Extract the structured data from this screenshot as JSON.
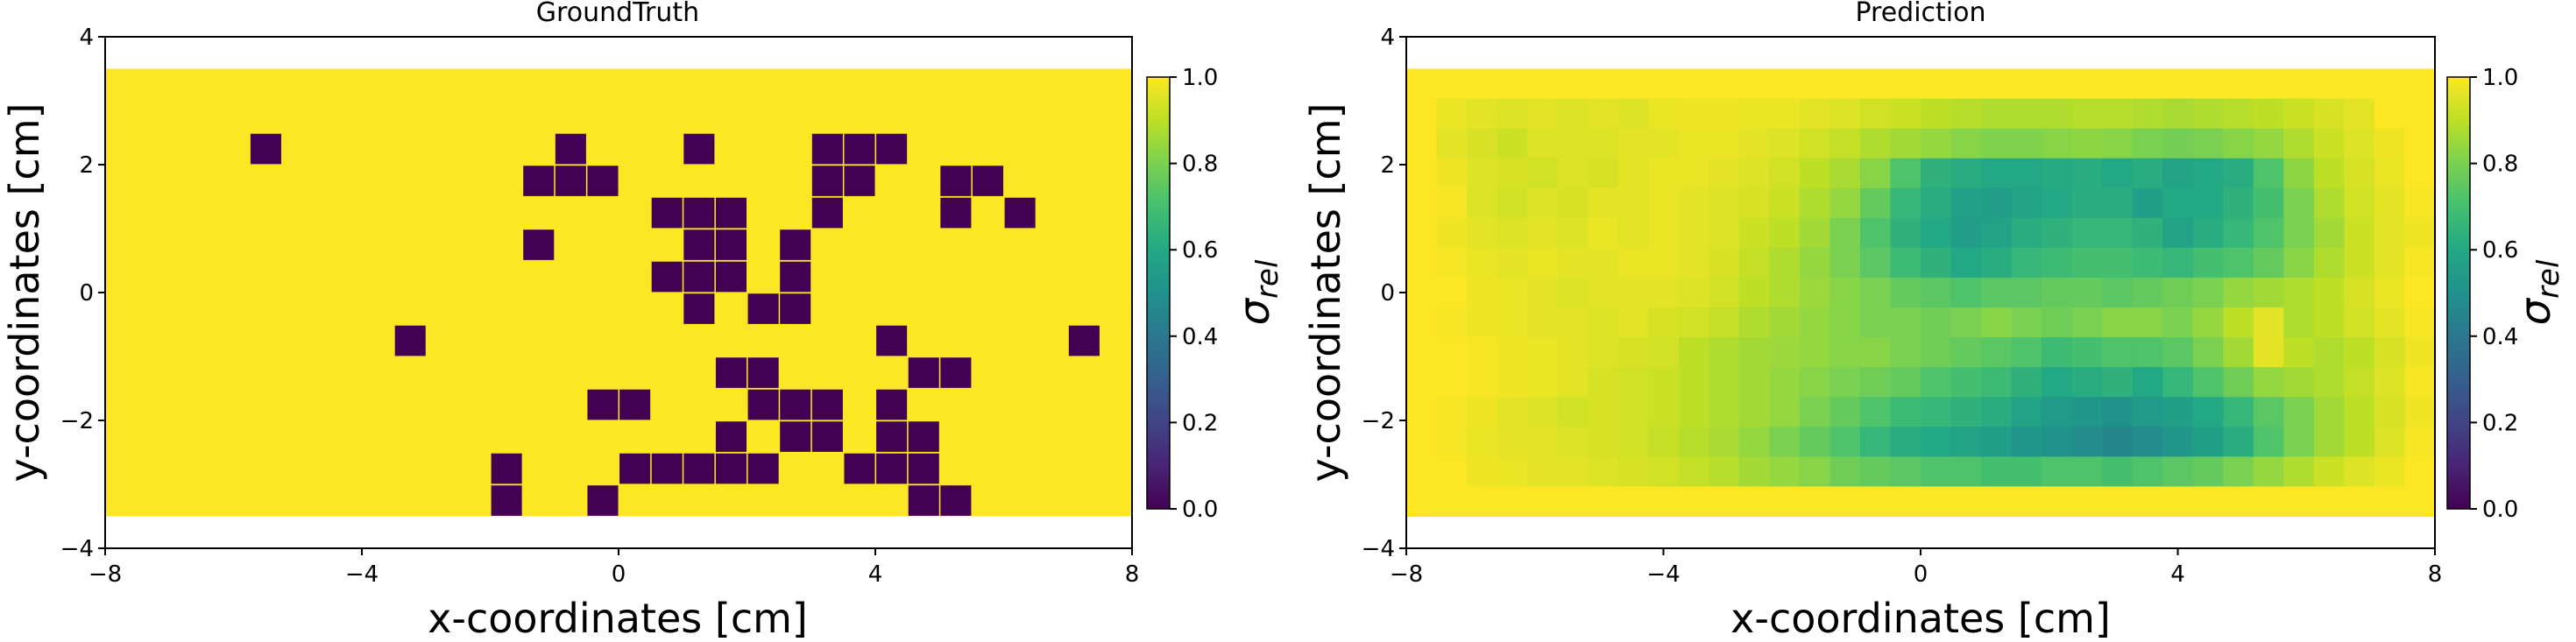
{
  "chart_data": [
    {
      "type": "heatmap",
      "title": "GroundTruth",
      "xlabel": "x-coordinates [cm]",
      "ylabel": "y-coordinates [cm]",
      "xlim": [
        -8,
        8
      ],
      "ylim": [
        -4,
        4
      ],
      "xticks": [
        "−8",
        "−4",
        "0",
        "4",
        "8"
      ],
      "xtick_values": [
        -8,
        -4,
        0,
        4,
        8
      ],
      "yticks": [
        "−4",
        "−2",
        "0",
        "2",
        "4"
      ],
      "ytick_values": [
        -4,
        -2,
        0,
        2,
        4
      ],
      "grid": false,
      "colormap": "viridis",
      "colorbar": {
        "label": "σ",
        "label_sub": "rel",
        "min": 0.0,
        "max": 1.0,
        "ticks": [
          "0.0",
          "0.2",
          "0.4",
          "0.6",
          "0.8",
          "1.0"
        ]
      },
      "grid_x": [
        -8,
        8,
        34
      ],
      "grid_y": [
        -3.5,
        3.5,
        15
      ],
      "fill_value": 1.0,
      "zero_cells": [
        [
          -5.5,
          2.25
        ],
        [
          -0.75,
          2.25
        ],
        [
          1.25,
          2.25
        ],
        [
          3.25,
          2.25
        ],
        [
          3.75,
          2.25
        ],
        [
          4.25,
          2.25
        ],
        [
          -1.25,
          1.75
        ],
        [
          -0.75,
          1.75
        ],
        [
          -0.25,
          1.75
        ],
        [
          3.25,
          1.75
        ],
        [
          3.75,
          1.75
        ],
        [
          5.25,
          1.75
        ],
        [
          5.75,
          1.75
        ],
        [
          0.75,
          1.25
        ],
        [
          1.25,
          1.25
        ],
        [
          1.75,
          1.25
        ],
        [
          3.25,
          1.25
        ],
        [
          5.25,
          1.25
        ],
        [
          6.25,
          1.25
        ],
        [
          -1.25,
          0.75
        ],
        [
          1.25,
          0.75
        ],
        [
          1.75,
          0.75
        ],
        [
          2.75,
          0.75
        ],
        [
          0.75,
          0.25
        ],
        [
          1.25,
          0.25
        ],
        [
          1.75,
          0.25
        ],
        [
          2.75,
          0.25
        ],
        [
          1.25,
          -0.25
        ],
        [
          2.25,
          -0.25
        ],
        [
          2.75,
          -0.25
        ],
        [
          -3.25,
          -0.75
        ],
        [
          4.25,
          -0.75
        ],
        [
          7.25,
          -0.75
        ],
        [
          1.75,
          -1.25
        ],
        [
          2.25,
          -1.25
        ],
        [
          4.75,
          -1.25
        ],
        [
          5.25,
          -1.25
        ],
        [
          -0.25,
          -1.75
        ],
        [
          0.25,
          -1.75
        ],
        [
          2.25,
          -1.75
        ],
        [
          2.75,
          -1.75
        ],
        [
          3.25,
          -1.75
        ],
        [
          4.25,
          -1.75
        ],
        [
          1.75,
          -2.25
        ],
        [
          2.75,
          -2.25
        ],
        [
          3.25,
          -2.25
        ],
        [
          4.25,
          -2.25
        ],
        [
          4.75,
          -2.25
        ],
        [
          -1.75,
          -2.75
        ],
        [
          0.25,
          -2.75
        ],
        [
          0.75,
          -2.75
        ],
        [
          1.25,
          -2.75
        ],
        [
          1.75,
          -2.75
        ],
        [
          2.25,
          -2.75
        ],
        [
          3.75,
          -2.75
        ],
        [
          4.25,
          -2.75
        ],
        [
          4.75,
          -2.75
        ],
        [
          -1.75,
          -3.25
        ],
        [
          -0.25,
          -3.25
        ],
        [
          4.75,
          -3.25
        ],
        [
          5.25,
          -3.25
        ]
      ]
    },
    {
      "type": "heatmap",
      "title": "Prediction",
      "xlabel": "x-coordinates [cm]",
      "ylabel": "y-coordinates [cm]",
      "xlim": [
        -8,
        8
      ],
      "ylim": [
        -4,
        4
      ],
      "xticks": [
        "−8",
        "−4",
        "0",
        "4",
        "8"
      ],
      "xtick_values": [
        -8,
        -4,
        0,
        4,
        8
      ],
      "yticks": [
        "−4",
        "−2",
        "0",
        "2",
        "4"
      ],
      "ytick_values": [
        -4,
        -2,
        0,
        2,
        4
      ],
      "grid": false,
      "colormap": "viridis",
      "colorbar": {
        "label": "σ",
        "label_sub": "rel",
        "min": 0.0,
        "max": 1.0,
        "ticks": [
          "0.0",
          "0.2",
          "0.4",
          "0.6",
          "0.8",
          "1.0"
        ]
      },
      "grid_x": [
        -8,
        8,
        34
      ],
      "grid_y": [
        -3.5,
        3.5,
        15
      ],
      "values": [
        [
          1.0,
          1.0,
          1.0,
          1.0,
          1.0,
          1.0,
          1.0,
          1.0,
          1.0,
          1.0,
          1.0,
          1.0,
          1.0,
          1.0,
          1.0,
          1.0,
          1.0,
          1.0,
          1.0,
          1.0,
          1.0,
          1.0,
          1.0,
          1.0,
          1.0,
          1.0,
          1.0,
          1.0,
          1.0,
          1.0,
          1.0,
          1.0,
          1.0,
          1.0
        ],
        [
          1.0,
          0.97,
          0.96,
          0.95,
          0.96,
          0.95,
          0.96,
          0.95,
          0.97,
          0.98,
          0.98,
          0.97,
          0.97,
          0.96,
          0.95,
          0.93,
          0.92,
          0.9,
          0.89,
          0.88,
          0.88,
          0.88,
          0.89,
          0.89,
          0.88,
          0.87,
          0.88,
          0.89,
          0.9,
          0.92,
          0.94,
          0.96,
          1.0,
          1.0
        ],
        [
          1.0,
          0.96,
          0.94,
          0.92,
          0.95,
          0.95,
          0.95,
          0.96,
          0.96,
          0.97,
          0.97,
          0.96,
          0.95,
          0.93,
          0.91,
          0.88,
          0.86,
          0.84,
          0.82,
          0.81,
          0.81,
          0.82,
          0.83,
          0.82,
          0.8,
          0.79,
          0.8,
          0.82,
          0.84,
          0.88,
          0.92,
          0.95,
          0.98,
          1.0
        ],
        [
          1.0,
          0.98,
          0.95,
          0.94,
          0.93,
          0.95,
          0.94,
          0.96,
          0.97,
          0.97,
          0.96,
          0.95,
          0.93,
          0.9,
          0.87,
          0.82,
          0.72,
          0.64,
          0.62,
          0.6,
          0.6,
          0.61,
          0.62,
          0.6,
          0.62,
          0.58,
          0.6,
          0.62,
          0.72,
          0.83,
          0.9,
          0.94,
          0.97,
          1.0
        ],
        [
          1.0,
          0.99,
          0.95,
          0.93,
          0.95,
          0.94,
          0.96,
          0.96,
          0.97,
          0.96,
          0.95,
          0.94,
          0.92,
          0.88,
          0.84,
          0.76,
          0.66,
          0.62,
          0.57,
          0.55,
          0.58,
          0.6,
          0.62,
          0.62,
          0.56,
          0.6,
          0.6,
          0.64,
          0.7,
          0.8,
          0.88,
          0.93,
          0.96,
          0.99
        ],
        [
          1.0,
          0.98,
          0.96,
          0.95,
          0.96,
          0.95,
          0.97,
          0.96,
          0.97,
          0.96,
          0.95,
          0.92,
          0.9,
          0.86,
          0.8,
          0.72,
          0.64,
          0.6,
          0.55,
          0.58,
          0.62,
          0.64,
          0.66,
          0.66,
          0.64,
          0.58,
          0.62,
          0.66,
          0.72,
          0.8,
          0.86,
          0.92,
          0.96,
          0.98
        ],
        [
          1.0,
          0.99,
          0.97,
          0.96,
          0.97,
          0.96,
          0.96,
          0.97,
          0.97,
          0.96,
          0.94,
          0.91,
          0.88,
          0.84,
          0.8,
          0.74,
          0.68,
          0.64,
          0.6,
          0.62,
          0.66,
          0.68,
          0.7,
          0.7,
          0.68,
          0.66,
          0.7,
          0.72,
          0.76,
          0.82,
          0.88,
          0.92,
          0.96,
          0.99
        ],
        [
          1.0,
          1.0,
          0.98,
          0.97,
          0.96,
          0.95,
          0.96,
          0.96,
          0.96,
          0.95,
          0.93,
          0.9,
          0.88,
          0.85,
          0.82,
          0.8,
          0.76,
          0.74,
          0.72,
          0.74,
          0.74,
          0.76,
          0.76,
          0.74,
          0.76,
          0.78,
          0.8,
          0.84,
          0.86,
          0.88,
          0.9,
          0.94,
          0.97,
          1.0
        ],
        [
          1.0,
          0.99,
          0.98,
          0.97,
          0.96,
          0.96,
          0.95,
          0.96,
          0.94,
          0.93,
          0.91,
          0.88,
          0.86,
          0.84,
          0.82,
          0.8,
          0.8,
          0.78,
          0.8,
          0.82,
          0.8,
          0.78,
          0.8,
          0.82,
          0.82,
          0.8,
          0.84,
          0.9,
          0.96,
          0.88,
          0.9,
          0.93,
          0.96,
          0.99
        ],
        [
          1.0,
          1.0,
          0.99,
          0.98,
          0.97,
          0.96,
          0.95,
          0.94,
          0.93,
          0.9,
          0.88,
          0.86,
          0.85,
          0.84,
          0.82,
          0.82,
          0.8,
          0.78,
          0.76,
          0.74,
          0.72,
          0.68,
          0.7,
          0.72,
          0.72,
          0.74,
          0.8,
          0.86,
          0.96,
          0.9,
          0.88,
          0.9,
          0.94,
          0.98
        ],
        [
          1.0,
          1.0,
          0.99,
          0.98,
          0.97,
          0.96,
          0.94,
          0.93,
          0.92,
          0.9,
          0.88,
          0.86,
          0.84,
          0.82,
          0.8,
          0.78,
          0.76,
          0.72,
          0.7,
          0.68,
          0.64,
          0.6,
          0.62,
          0.64,
          0.6,
          0.66,
          0.72,
          0.78,
          0.84,
          0.86,
          0.88,
          0.91,
          0.95,
          0.99
        ],
        [
          1.0,
          0.99,
          0.98,
          0.96,
          0.95,
          0.93,
          0.94,
          0.93,
          0.92,
          0.9,
          0.88,
          0.86,
          0.84,
          0.8,
          0.76,
          0.72,
          0.68,
          0.66,
          0.64,
          0.62,
          0.58,
          0.54,
          0.52,
          0.5,
          0.54,
          0.56,
          0.6,
          0.66,
          0.74,
          0.8,
          0.86,
          0.9,
          0.94,
          0.98
        ],
        [
          1.0,
          0.99,
          0.97,
          0.96,
          0.96,
          0.95,
          0.94,
          0.93,
          0.91,
          0.89,
          0.87,
          0.84,
          0.8,
          0.76,
          0.72,
          0.66,
          0.62,
          0.6,
          0.58,
          0.56,
          0.52,
          0.5,
          0.48,
          0.46,
          0.48,
          0.52,
          0.56,
          0.62,
          0.72,
          0.8,
          0.86,
          0.9,
          0.95,
          0.99
        ],
        [
          1.0,
          1.0,
          0.98,
          0.97,
          0.96,
          0.96,
          0.95,
          0.94,
          0.93,
          0.91,
          0.89,
          0.86,
          0.84,
          0.82,
          0.78,
          0.76,
          0.74,
          0.72,
          0.72,
          0.7,
          0.7,
          0.72,
          0.72,
          0.7,
          0.72,
          0.74,
          0.76,
          0.8,
          0.84,
          0.88,
          0.92,
          0.95,
          0.97,
          1.0
        ],
        [
          1.0,
          1.0,
          1.0,
          1.0,
          1.0,
          1.0,
          1.0,
          1.0,
          1.0,
          1.0,
          1.0,
          1.0,
          1.0,
          1.0,
          1.0,
          1.0,
          1.0,
          1.0,
          1.0,
          1.0,
          1.0,
          1.0,
          1.0,
          1.0,
          1.0,
          1.0,
          1.0,
          1.0,
          1.0,
          1.0,
          1.0,
          1.0,
          1.0,
          1.0
        ]
      ]
    }
  ]
}
